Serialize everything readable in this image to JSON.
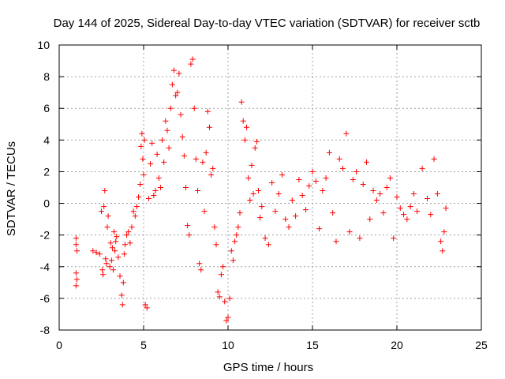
{
  "chart_data": {
    "type": "scatter",
    "title": "Day 144 of 2025, Sidereal Day-to-day VTEC variation (SDTVAR) for receiver sctb",
    "xlabel": "GPS time / hours",
    "ylabel": "SDTVAR / TECUs",
    "xlim": [
      0,
      25
    ],
    "ylim": [
      -8,
      10
    ],
    "xticks": [
      "0",
      "5",
      "10",
      "15",
      "20",
      "25"
    ],
    "yticks": [
      "-8",
      "-6",
      "-4",
      "-2",
      "0",
      "2",
      "4",
      "6",
      "8",
      "10"
    ],
    "grid": true,
    "marker": "+",
    "color": "#ff0000",
    "series": [
      {
        "name": "SDTVAR",
        "x": [
          1.0,
          1.0,
          1.0,
          1.0,
          1.05,
          1.05,
          2.0,
          2.2,
          2.4,
          2.5,
          2.55,
          2.6,
          2.65,
          2.7,
          2.75,
          2.8,
          2.85,
          2.9,
          3.0,
          3.05,
          3.1,
          3.15,
          3.2,
          3.25,
          3.3,
          3.35,
          3.4,
          3.5,
          3.6,
          3.7,
          3.75,
          3.8,
          3.85,
          3.9,
          4.0,
          4.1,
          4.2,
          4.3,
          4.4,
          4.5,
          4.6,
          4.7,
          4.8,
          4.85,
          4.9,
          4.95,
          5.0,
          5.05,
          5.1,
          5.2,
          5.3,
          5.4,
          5.5,
          5.6,
          5.7,
          5.8,
          5.9,
          6.0,
          6.1,
          6.2,
          6.3,
          6.4,
          6.5,
          6.6,
          6.7,
          6.8,
          6.9,
          7.0,
          7.1,
          7.2,
          7.3,
          7.4,
          7.5,
          7.6,
          7.7,
          7.8,
          7.9,
          8.0,
          8.1,
          8.2,
          8.3,
          8.4,
          8.5,
          8.6,
          8.7,
          8.8,
          8.9,
          9.0,
          9.1,
          9.2,
          9.3,
          9.4,
          9.5,
          9.6,
          9.7,
          9.8,
          9.9,
          10.0,
          10.1,
          10.2,
          10.3,
          10.4,
          10.5,
          10.6,
          10.7,
          10.8,
          10.9,
          11.0,
          11.1,
          11.2,
          11.3,
          11.4,
          11.5,
          11.6,
          11.7,
          11.8,
          11.9,
          12.0,
          12.2,
          12.4,
          12.6,
          12.8,
          13.0,
          13.2,
          13.4,
          13.6,
          13.8,
          14.0,
          14.2,
          14.4,
          14.6,
          14.8,
          15.0,
          15.2,
          15.4,
          15.6,
          15.8,
          16.0,
          16.2,
          16.4,
          16.6,
          16.8,
          17.0,
          17.2,
          17.4,
          17.6,
          17.8,
          18.0,
          18.2,
          18.4,
          18.6,
          18.8,
          19.0,
          19.2,
          19.4,
          19.6,
          19.8,
          20.0,
          20.2,
          20.4,
          20.6,
          20.8,
          21.0,
          21.2,
          21.5,
          21.8,
          22.0,
          22.2,
          22.4,
          22.6,
          22.7,
          22.8,
          22.9
        ],
        "y": [
          -2.2,
          -2.6,
          -4.4,
          -5.2,
          -4.8,
          -3.0,
          -3.0,
          -3.1,
          -3.2,
          -0.5,
          -4.2,
          -4.5,
          -0.2,
          0.8,
          -3.5,
          -3.8,
          -1.5,
          -0.8,
          -4.0,
          -2.5,
          -3.6,
          -2.8,
          -4.2,
          -1.8,
          -3.0,
          -2.4,
          -2.1,
          -3.4,
          -4.6,
          -5.8,
          -6.4,
          -5.0,
          -3.2,
          -2.6,
          -2.0,
          -1.8,
          -2.5,
          -1.5,
          -0.5,
          -0.8,
          -0.2,
          0.4,
          1.2,
          3.6,
          4.4,
          2.8,
          1.8,
          4.0,
          -6.4,
          -6.6,
          0.3,
          2.5,
          3.8,
          0.5,
          0.8,
          3.1,
          1.6,
          1.0,
          4.0,
          2.6,
          5.2,
          4.6,
          3.5,
          6.0,
          7.5,
          8.4,
          6.8,
          7.0,
          8.2,
          5.6,
          4.2,
          3.0,
          1.0,
          -1.4,
          -2.0,
          8.8,
          9.1,
          6.0,
          2.8,
          0.8,
          -3.8,
          -4.2,
          2.6,
          -0.5,
          3.2,
          5.8,
          4.8,
          1.8,
          2.2,
          -1.5,
          -2.6,
          -5.6,
          -5.9,
          -4.5,
          -4.0,
          -6.2,
          -7.4,
          -7.2,
          -6.0,
          -3.0,
          -3.6,
          -2.4,
          -2.0,
          -1.5,
          -0.6,
          6.4,
          5.2,
          4.0,
          4.8,
          1.6,
          0.2,
          2.4,
          0.6,
          3.5,
          3.9,
          0.8,
          -0.9,
          -0.2,
          -2.2,
          -2.6,
          1.3,
          -0.5,
          0.6,
          1.8,
          -1.0,
          -1.5,
          0.2,
          -0.8,
          1.5,
          0.5,
          -0.4,
          1.1,
          2.0,
          1.4,
          -1.6,
          0.8,
          1.6,
          3.2,
          -0.6,
          -2.4,
          2.8,
          2.2,
          4.4,
          -1.8,
          1.5,
          2.0,
          -2.2,
          1.2,
          2.6,
          -1.0,
          0.8,
          0.2,
          0.6,
          -0.6,
          1.0,
          1.6,
          -2.2,
          0.4,
          -0.3,
          -0.7,
          -1.0,
          -0.2,
          0.6,
          -0.5,
          2.2,
          0.3,
          -0.7,
          2.8,
          0.6,
          -2.4,
          -3.0,
          -1.8,
          -0.3
        ]
      }
    ]
  }
}
